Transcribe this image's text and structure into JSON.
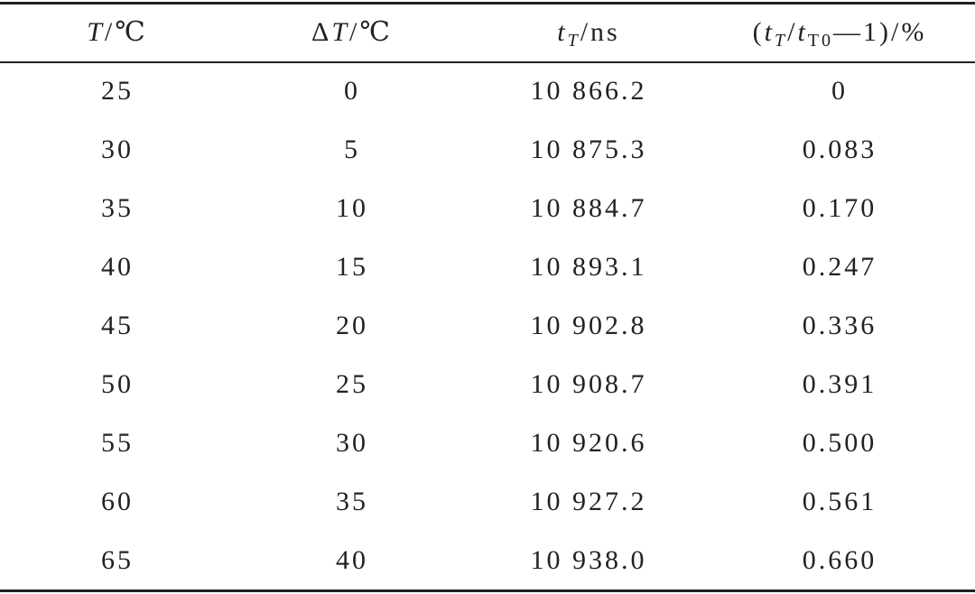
{
  "table": {
    "header": [
      [
        "T",
        "/℃"
      ],
      [
        "Δ",
        "T",
        "/℃"
      ],
      [
        "t",
        "T",
        "/ns"
      ],
      [
        "(",
        "t",
        "T",
        "/",
        "t",
        "T0",
        "—1)/%"
      ]
    ],
    "rows": [
      [
        "25",
        "0",
        "10 866.2",
        "0"
      ],
      [
        "30",
        "5",
        "10 875.3",
        "0.083"
      ],
      [
        "35",
        "10",
        "10 884.7",
        "0.170"
      ],
      [
        "40",
        "15",
        "10 893.1",
        "0.247"
      ],
      [
        "45",
        "20",
        "10 902.8",
        "0.336"
      ],
      [
        "50",
        "25",
        "10 908.7",
        "0.391"
      ],
      [
        "55",
        "30",
        "10 920.6",
        "0.500"
      ],
      [
        "60",
        "35",
        "10 927.2",
        "0.561"
      ],
      [
        "65",
        "40",
        "10 938.0",
        "0.660"
      ]
    ]
  }
}
